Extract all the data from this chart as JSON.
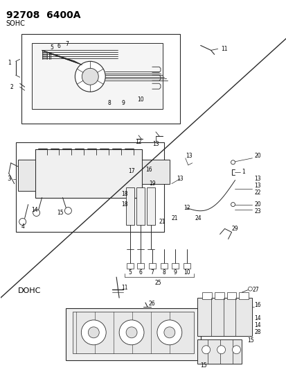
{
  "title1": "92708",
  "title2": "6400A",
  "bg_color": "#ffffff",
  "lc": "#2a2a2a",
  "tc": "#000000",
  "sohc_label": "SOHC",
  "dohc_label": "DOHC",
  "fig_width": 4.14,
  "fig_height": 5.33,
  "dpi": 100,
  "title_fs": 10,
  "label_fs": 6.5,
  "small_fs": 5.5
}
